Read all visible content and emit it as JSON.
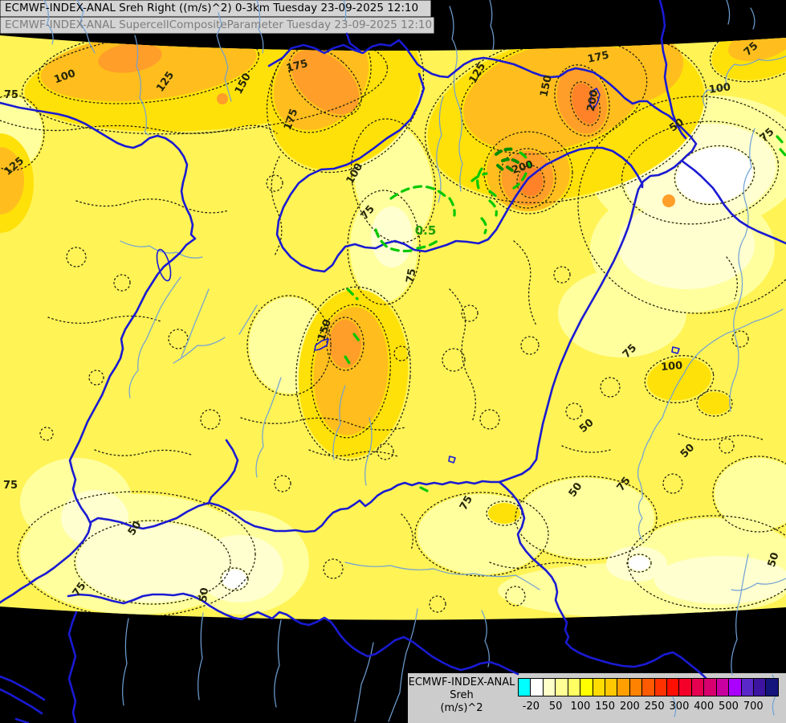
{
  "header": {
    "line1": "ECMWF-INDEX-ANAL Sreh Right ((m/s)^2) 0-3km Tuesday 23-09-2025 12:10",
    "line2": "ECMWF-INDEX-ANAL SupercellCompositeParameter Tuesday 23-09-2025 12:10"
  },
  "legend": {
    "title": "ECMWF-INDEX-ANAL",
    "param": "Sreh",
    "units": "(m/s)^2",
    "ticks": [
      "-20",
      "50",
      "100",
      "150",
      "200",
      "250",
      "300",
      "400",
      "500",
      "700"
    ],
    "colors": [
      "#00FFFF",
      "#FFFFFF",
      "#FFFFC8",
      "#FFFF96",
      "#FFFF64",
      "#FFFF00",
      "#FFDC00",
      "#FFC800",
      "#FFA000",
      "#FF8200",
      "#FF5A00",
      "#FF3200",
      "#FF0F00",
      "#F50028",
      "#E60050",
      "#D8006E",
      "#C800A0",
      "#AA00FF",
      "#5A28C8",
      "#3C14A0",
      "#14147D"
    ]
  },
  "map": {
    "palette": {
      "base_yellow": "#FFF356",
      "pale_yellow": "#FFFF9E",
      "cream": "#FFFFCF",
      "white": "#FFFFFF",
      "gold": "#FFE10A",
      "orange": "#FFBE1E",
      "deep_orange": "#FF9E28",
      "core_orange": "#FF8228",
      "river_major": "#1A1AD2",
      "river_minor": "#6FA0D6",
      "supercell_green": "#00C800",
      "outside_domain": "#000000"
    },
    "labels": [
      "75",
      "100",
      "125",
      "125",
      "150",
      "175",
      "175",
      "125",
      "150",
      "175",
      "200",
      "200",
      "50",
      "100",
      "75",
      "75",
      "100",
      "75",
      "150",
      "75",
      "100",
      "75",
      "50",
      "75",
      "50",
      "75",
      "50",
      "75",
      "75",
      "50",
      "50",
      "50",
      "0.5"
    ]
  }
}
